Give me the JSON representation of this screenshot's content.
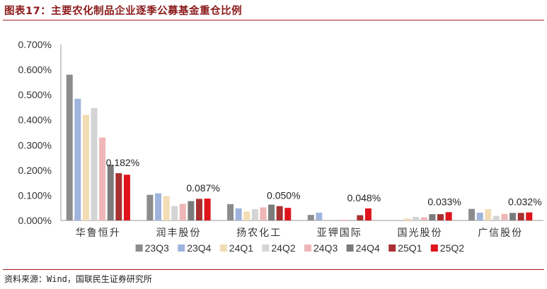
{
  "header": {
    "title": "图表17：主要农化制品企业逐季公募基金重仓比例"
  },
  "footer": {
    "source": "资料来源：Wind，国联民生证券研究所"
  },
  "chart_data": {
    "type": "bar",
    "title": "",
    "xlabel": "",
    "ylabel": "",
    "ylim": [
      0,
      0.7
    ],
    "y_ticks": [
      "0.000%",
      "0.100%",
      "0.200%",
      "0.300%",
      "0.400%",
      "0.500%",
      "0.600%",
      "0.700%"
    ],
    "grid": false,
    "legend_position": "bottom",
    "categories": [
      "华鲁恒升",
      "润丰股份",
      "扬农化工",
      "亚钾国际",
      "国光股份",
      "广信股份"
    ],
    "series": [
      {
        "name": "23Q3",
        "color": "#8c8c8c",
        "values": [
          0.58,
          0.102,
          0.065,
          0.022,
          0.0,
          0.046
        ]
      },
      {
        "name": "23Q4",
        "color": "#9fb4dd",
        "values": [
          0.484,
          0.108,
          0.048,
          0.031,
          0.0,
          0.031
        ]
      },
      {
        "name": "24Q1",
        "color": "#f2dcb3",
        "values": [
          0.42,
          0.097,
          0.036,
          0.0,
          0.008,
          0.045
        ]
      },
      {
        "name": "24Q2",
        "color": "#d4d4d4",
        "values": [
          0.447,
          0.057,
          0.045,
          0.0,
          0.014,
          0.018
        ]
      },
      {
        "name": "24Q3",
        "color": "#efb6b7",
        "values": [
          0.33,
          0.066,
          0.052,
          0.003,
          0.012,
          0.026
        ]
      },
      {
        "name": "24Q4",
        "color": "#7b7b7b",
        "values": [
          0.222,
          0.077,
          0.063,
          0.0,
          0.025,
          0.03
        ]
      },
      {
        "name": "25Q1",
        "color": "#a83030",
        "values": [
          0.188,
          0.086,
          0.057,
          0.021,
          0.025,
          0.03
        ]
      },
      {
        "name": "25Q2",
        "color": "#e0141b",
        "values": [
          0.182,
          0.087,
          0.05,
          0.048,
          0.033,
          0.032
        ]
      }
    ],
    "data_labels": [
      "0.182%",
      "0.087%",
      "0.050%",
      "0.048%",
      "0.033%",
      "0.032%"
    ]
  }
}
